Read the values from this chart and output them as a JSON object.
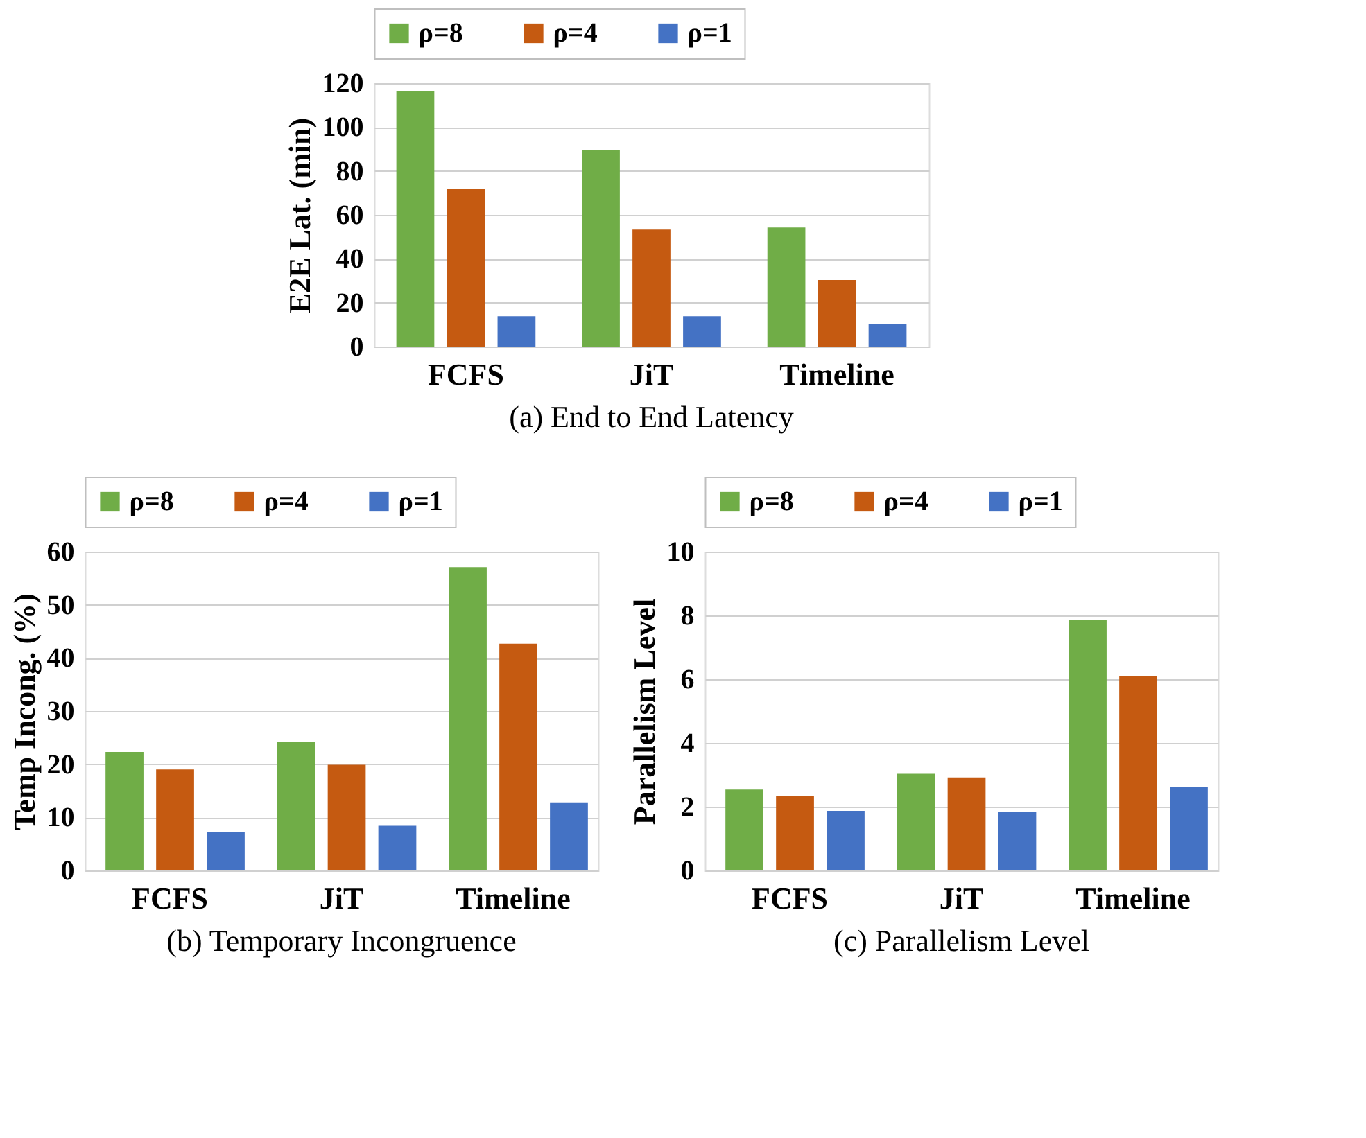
{
  "chart_data": [
    {
      "type": "bar",
      "title": "(a) End to End Latency",
      "ylabel": "E2E Lat. (min)",
      "categories": [
        "FCFS",
        "JiT",
        "Timeline"
      ],
      "ylim": [
        0,
        120
      ],
      "yticks": [
        0,
        20,
        40,
        60,
        80,
        100,
        120
      ],
      "grid": "y",
      "legend": "top",
      "series": [
        {
          "name": "ρ=8",
          "color": "#70ad47",
          "values": [
            116.2,
            89.4,
            54.2
          ]
        },
        {
          "name": "ρ=4",
          "color": "#c55a11",
          "values": [
            71.8,
            53.3,
            30.3
          ]
        },
        {
          "name": "ρ=1",
          "color": "#4472c4",
          "values": [
            13.8,
            13.8,
            10.3
          ]
        }
      ]
    },
    {
      "type": "bar",
      "title": "(b) Temporary Incongruence",
      "ylabel": "Temp Incong. (%)",
      "categories": [
        "FCFS",
        "JiT",
        "Timeline"
      ],
      "ylim": [
        0,
        60
      ],
      "yticks": [
        0,
        10,
        20,
        30,
        40,
        50,
        60
      ],
      "grid": "y",
      "legend": "top",
      "series": [
        {
          "name": "ρ=8",
          "color": "#70ad47",
          "values": [
            22.3,
            24.2,
            57.1
          ]
        },
        {
          "name": "ρ=4",
          "color": "#c55a11",
          "values": [
            19.0,
            19.9,
            42.7
          ]
        },
        {
          "name": "ρ=1",
          "color": "#4472c4",
          "values": [
            7.2,
            8.4,
            12.8
          ]
        }
      ]
    },
    {
      "type": "bar",
      "title": "(c) Parallelism Level",
      "ylabel": "Parallelism Level",
      "categories": [
        "FCFS",
        "JiT",
        "Timeline"
      ],
      "ylim": [
        0,
        10
      ],
      "yticks": [
        0,
        2,
        4,
        6,
        8,
        10
      ],
      "grid": "y",
      "legend": "top",
      "series": [
        {
          "name": "ρ=8",
          "color": "#70ad47",
          "values": [
            2.54,
            3.03,
            7.87
          ]
        },
        {
          "name": "ρ=4",
          "color": "#c55a11",
          "values": [
            2.33,
            2.92,
            6.11
          ]
        },
        {
          "name": "ρ=1",
          "color": "#4472c4",
          "values": [
            1.87,
            1.84,
            2.62
          ]
        }
      ]
    }
  ]
}
